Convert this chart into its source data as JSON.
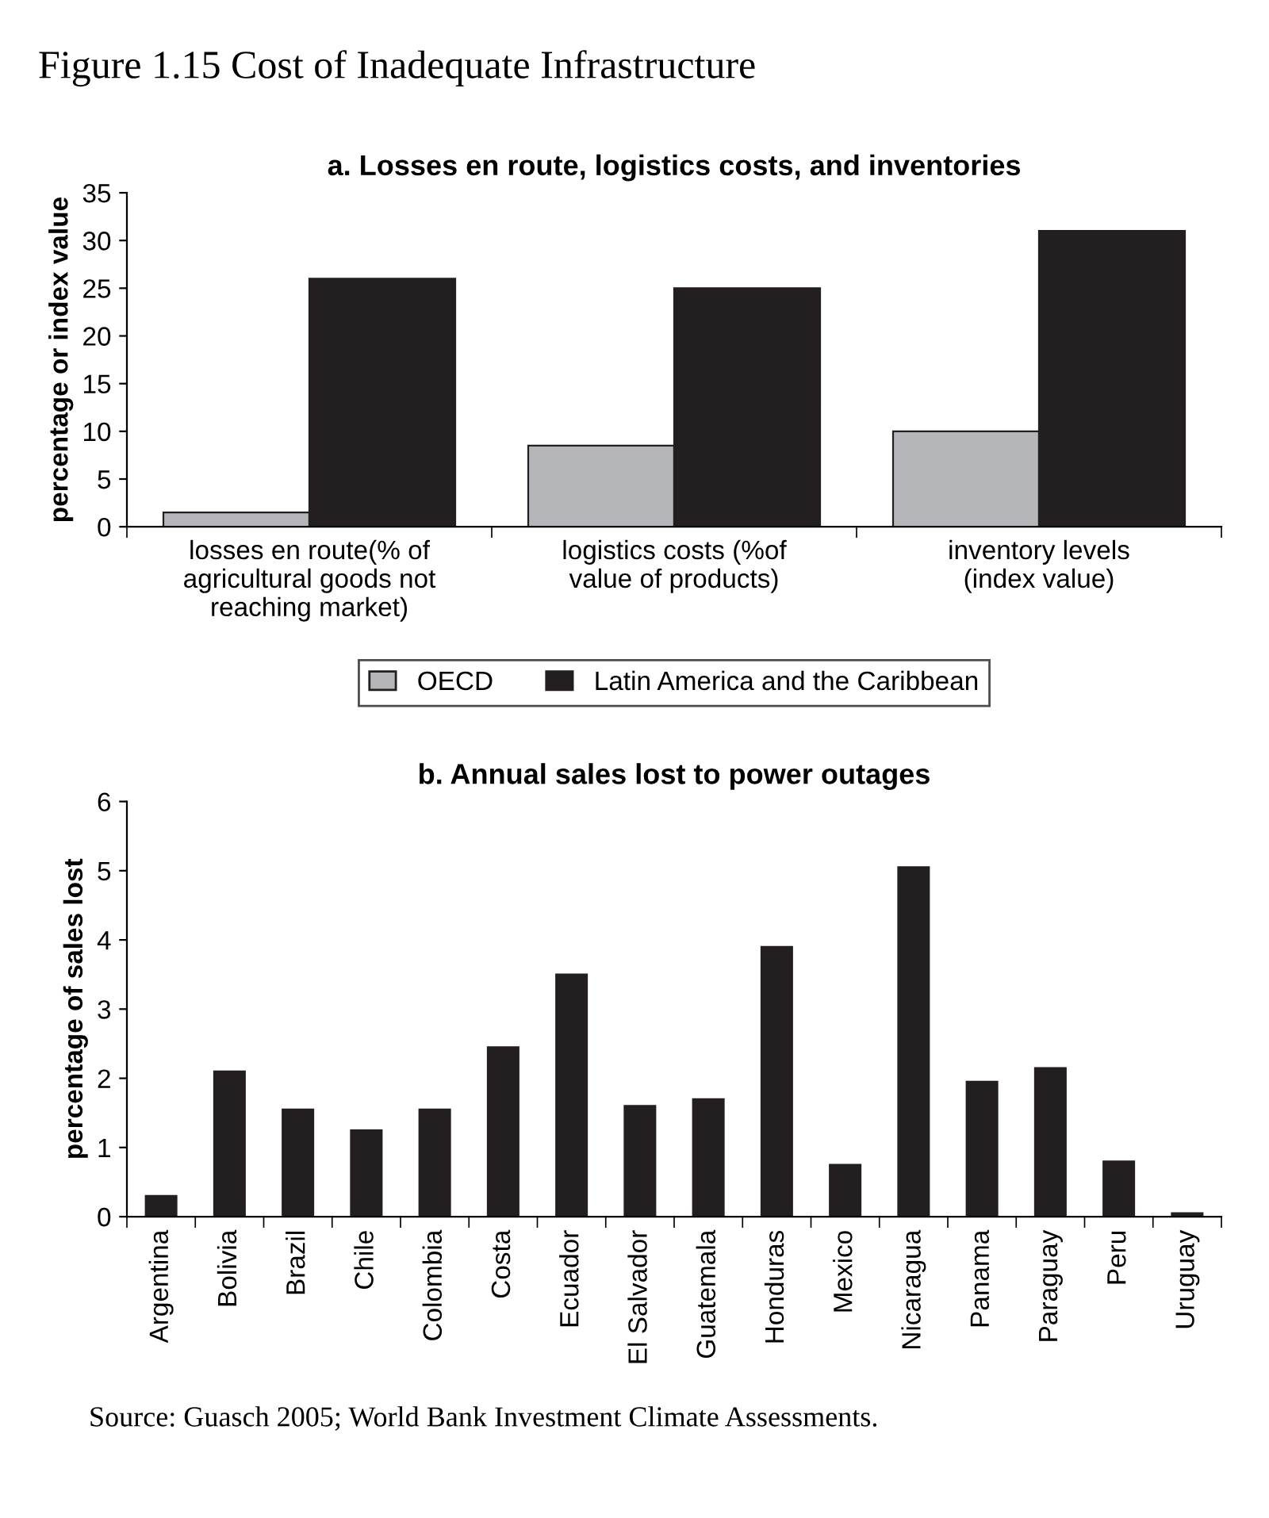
{
  "chart_data": [
    {
      "type": "bar",
      "title": "a. Losses en route, logistics costs, and inventories",
      "ylabel": "percentage or index value",
      "categories": [
        "losses en route(% of\nagricultural goods not\nreaching market)",
        "logistics costs (%of\nvalue of products)",
        "inventory levels\n(index value)"
      ],
      "series": [
        {
          "name": "OECD",
          "color": "#b4b6b9",
          "values": [
            1.5,
            8.5,
            10
          ]
        },
        {
          "name": "Latin America and the Caribbean",
          "color": "#231f20",
          "values": [
            26,
            25,
            31
          ]
        }
      ],
      "ylim": [
        0,
        35
      ],
      "yticks": [
        0,
        5,
        10,
        15,
        20,
        25,
        30,
        35
      ],
      "grid": false,
      "legend": "bottom",
      "annotations": [
        "Figure 1.15 Cost of Inadequate Infrastructure"
      ]
    },
    {
      "type": "bar",
      "title": "b. Annual sales lost to power outages",
      "ylabel": "percentage of sales lost",
      "categories": [
        "Argentina",
        "Bolivia",
        "Brazil",
        "Chile",
        "Colombia",
        "Costa",
        "Ecuador",
        "El Salvador",
        "Guatemala",
        "Honduras",
        "Mexico",
        "Nicaragua",
        "Panama",
        "Paraguay",
        "Peru",
        "Uruguay"
      ],
      "series": [
        {
          "color": "#231f20",
          "values": [
            0.3,
            2.1,
            1.55,
            1.25,
            1.55,
            2.45,
            3.5,
            1.6,
            1.7,
            3.9,
            0.75,
            5.05,
            1.95,
            2.15,
            0.8,
            0.05
          ]
        }
      ],
      "ylim": [
        0,
        6
      ],
      "yticks": [
        0,
        1,
        2,
        3,
        4,
        5,
        6
      ],
      "grid": false,
      "legend": false,
      "annotations": [
        "Source: Guasch 2005; World Bank Investment Climate Assessments."
      ]
    }
  ]
}
